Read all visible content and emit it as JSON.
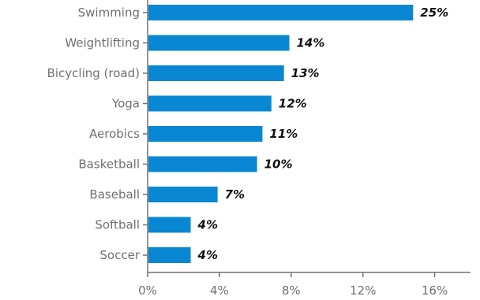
{
  "chart_data": {
    "type": "bar",
    "orientation": "horizontal",
    "title": "",
    "xlabel": "",
    "ylabel": "",
    "categories": [
      "Swimming",
      "Weightlifting",
      "Bicycling (road)",
      "Yoga",
      "Aerobics",
      "Basketball",
      "Baseball",
      "Softball",
      "Soccer"
    ],
    "values": [
      14.8,
      7.9,
      7.6,
      6.9,
      6.4,
      6.1,
      3.9,
      2.4,
      2.4
    ],
    "data_labels": [
      "25%",
      "14%",
      "13%",
      "12%",
      "11%",
      "10%",
      "7%",
      "4%",
      "4%"
    ],
    "xlim": [
      0,
      18
    ],
    "x_ticks": [
      0,
      4,
      8,
      12,
      16
    ],
    "x_tick_labels": [
      "0%",
      "4%",
      "8%",
      "12%",
      "16%"
    ],
    "grid": false,
    "legend": "none",
    "colors": {
      "bar": "#0A87D2",
      "axis": "#707070",
      "text": "#707070",
      "data_label": "#111111"
    }
  }
}
